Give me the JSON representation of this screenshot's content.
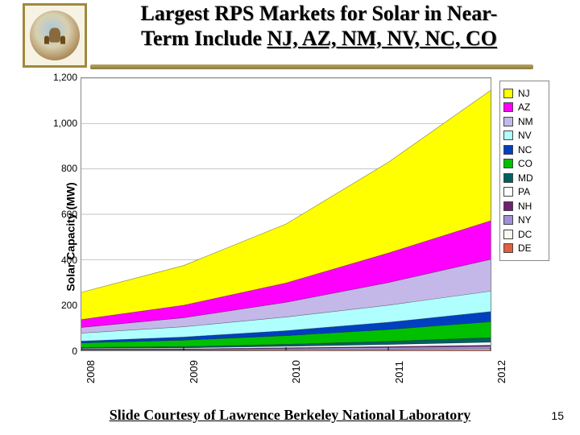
{
  "title_line1": "Largest RPS Markets for Solar in Near-",
  "title_line2_prefix": "Term Include ",
  "title_line2_states": "NJ, AZ, NM, NV, NC, CO",
  "credit": "Slide Courtesy of Lawrence Berkeley National Laboratory",
  "page_number": "15",
  "chart": {
    "type": "stacked-area",
    "ylabel": "Solar Capacity (MW)",
    "ylim": [
      0,
      1200
    ],
    "ytick_step": 200,
    "yticks": [
      "0",
      "200",
      "400",
      "600",
      "800",
      "1,000",
      "1,200"
    ],
    "xcategories": [
      "2008",
      "2009",
      "2010",
      "2011",
      "2012"
    ],
    "background_color": "#ffffff",
    "grid_color": "#c4c4c4",
    "axis_color": "#888888",
    "plot_border_width": 1,
    "title_fontsize": 26,
    "label_fontsize": 14,
    "tick_fontsize": 12,
    "legend_fontsize": 12,
    "series": [
      {
        "name": "NJ",
        "color": "#ffff00",
        "values": [
          120,
          175,
          260,
          400,
          575
        ]
      },
      {
        "name": "AZ",
        "color": "#ff00ff",
        "values": [
          35,
          55,
          85,
          130,
          170
        ]
      },
      {
        "name": "NM",
        "color": "#c4b8e8",
        "values": [
          25,
          40,
          65,
          100,
          140
        ]
      },
      {
        "name": "NV",
        "color": "#b0ffff",
        "values": [
          35,
          45,
          60,
          75,
          90
        ]
      },
      {
        "name": "NC",
        "color": "#0040c0",
        "values": [
          8,
          14,
          22,
          32,
          45
        ]
      },
      {
        "name": "CO",
        "color": "#00c000",
        "values": [
          20,
          28,
          38,
          52,
          70
        ]
      },
      {
        "name": "MD",
        "color": "#006060",
        "values": [
          4,
          6,
          9,
          14,
          20
        ]
      },
      {
        "name": "PA",
        "color": "#ffffff",
        "values": [
          3,
          4,
          6,
          9,
          13
        ]
      },
      {
        "name": "NH",
        "color": "#702070",
        "values": [
          2,
          2,
          3,
          4,
          5
        ]
      },
      {
        "name": "NY",
        "color": "#a090d8",
        "values": [
          2,
          3,
          5,
          7,
          10
        ]
      },
      {
        "name": "DC",
        "color": "#f8f8f0",
        "values": [
          1,
          1,
          2,
          3,
          4
        ]
      },
      {
        "name": "DE",
        "color": "#e06040",
        "values": [
          1,
          1,
          2,
          3,
          4
        ]
      }
    ]
  }
}
